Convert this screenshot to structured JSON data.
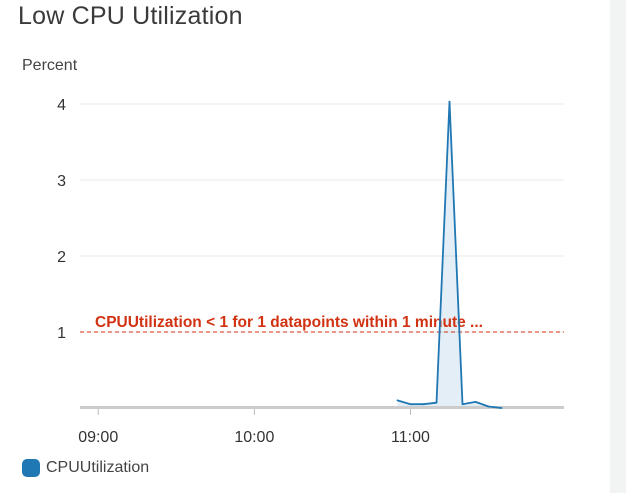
{
  "title": "Low CPU Utilization",
  "colors": {
    "series": "#1f77b4",
    "threshold": "#d13212",
    "grid": "#e8e8e8",
    "axis": "#cccccc",
    "area_fill": "#d7d9db"
  },
  "chart_data": {
    "type": "line",
    "title": "Low CPU Utilization",
    "ylabel": "Percent",
    "xlabel": "",
    "ylim": [
      0,
      4
    ],
    "xlim": [
      "08:53",
      "11:59"
    ],
    "x_ticks": [
      "09:00",
      "10:00",
      "11:00"
    ],
    "y_ticks": [
      "1",
      "2",
      "3",
      "4"
    ],
    "series": [
      {
        "name": "CPUUtilization",
        "x": [
          "10:55",
          "11:00",
          "11:05",
          "11:10",
          "11:15",
          "11:20",
          "11:25",
          "11:30",
          "11:35"
        ],
        "values": [
          0.1,
          0.05,
          0.05,
          0.07,
          4.03,
          0.05,
          0.08,
          0.02,
          0.0
        ]
      }
    ],
    "threshold": {
      "value": 1,
      "label": "CPUUtilization < 1 for 1 datapoints within 1 minute ..."
    },
    "grid": true,
    "legend": "bottom-left"
  }
}
